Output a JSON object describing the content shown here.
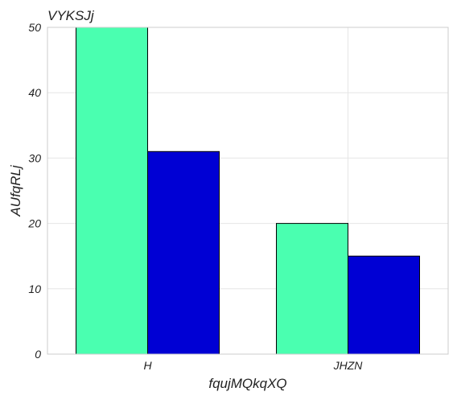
{
  "chart_data": {
    "type": "bar",
    "title": "VYKSJj",
    "xlabel": "fqujMQkqXQ",
    "ylabel": "AUfqRLj",
    "categories": [
      "H",
      "JHZN"
    ],
    "series": [
      {
        "values": [
          50,
          20
        ],
        "color": "#4affb0"
      },
      {
        "values": [
          31,
          15
        ],
        "color": "#0000d4"
      }
    ],
    "ylim": [
      0,
      50
    ],
    "yticks": [
      0,
      10,
      20,
      30,
      40,
      50
    ],
    "grid": true
  }
}
